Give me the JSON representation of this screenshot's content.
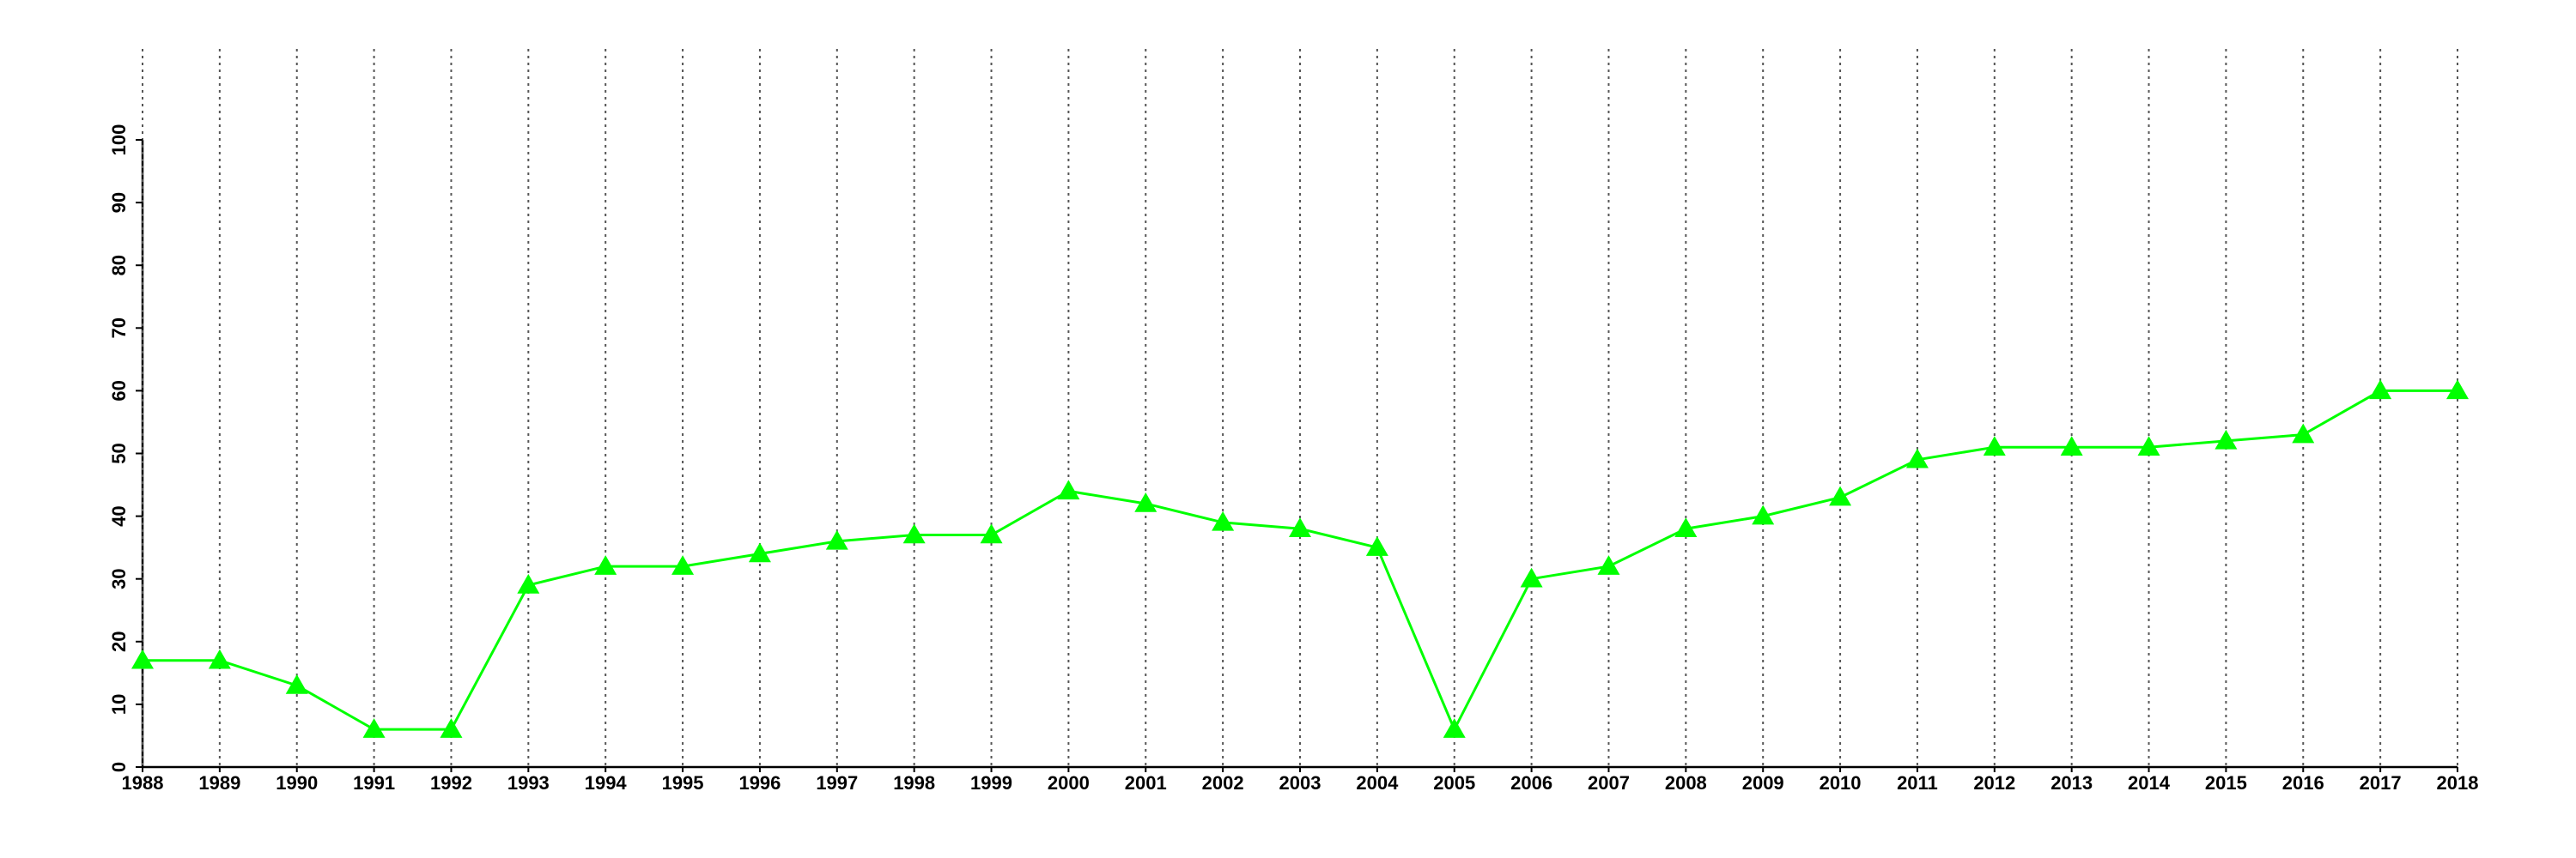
{
  "chart_data": {
    "type": "line",
    "x": [
      1988,
      1989,
      1990,
      1991,
      1992,
      1993,
      1994,
      1995,
      1996,
      1997,
      1998,
      1999,
      2000,
      2001,
      2002,
      2003,
      2004,
      2005,
      2006,
      2007,
      2008,
      2009,
      2010,
      2011,
      2012,
      2013,
      2014,
      2015,
      2016,
      2017,
      2018
    ],
    "values": [
      17,
      17,
      13,
      6,
      6,
      29,
      32,
      32,
      34,
      36,
      37,
      37,
      44,
      42,
      39,
      38,
      35,
      6,
      30,
      32,
      38,
      40,
      43,
      49,
      51,
      51,
      51,
      52,
      53,
      60,
      60
    ],
    "color": "#00ff00",
    "marker": "triangle",
    "xlim": [
      1988,
      2018
    ],
    "xticks": [
      1988,
      1989,
      1990,
      1991,
      1992,
      1993,
      1994,
      1995,
      1996,
      1997,
      1998,
      1999,
      2000,
      2001,
      2002,
      2003,
      2004,
      2005,
      2006,
      2007,
      2008,
      2009,
      2010,
      2011,
      2012,
      2013,
      2014,
      2015,
      2016,
      2017,
      2018
    ],
    "ylim": [
      0,
      100
    ],
    "yticks": [
      0,
      10,
      20,
      30,
      40,
      50,
      60,
      70,
      80,
      90,
      100
    ],
    "grid": true
  }
}
